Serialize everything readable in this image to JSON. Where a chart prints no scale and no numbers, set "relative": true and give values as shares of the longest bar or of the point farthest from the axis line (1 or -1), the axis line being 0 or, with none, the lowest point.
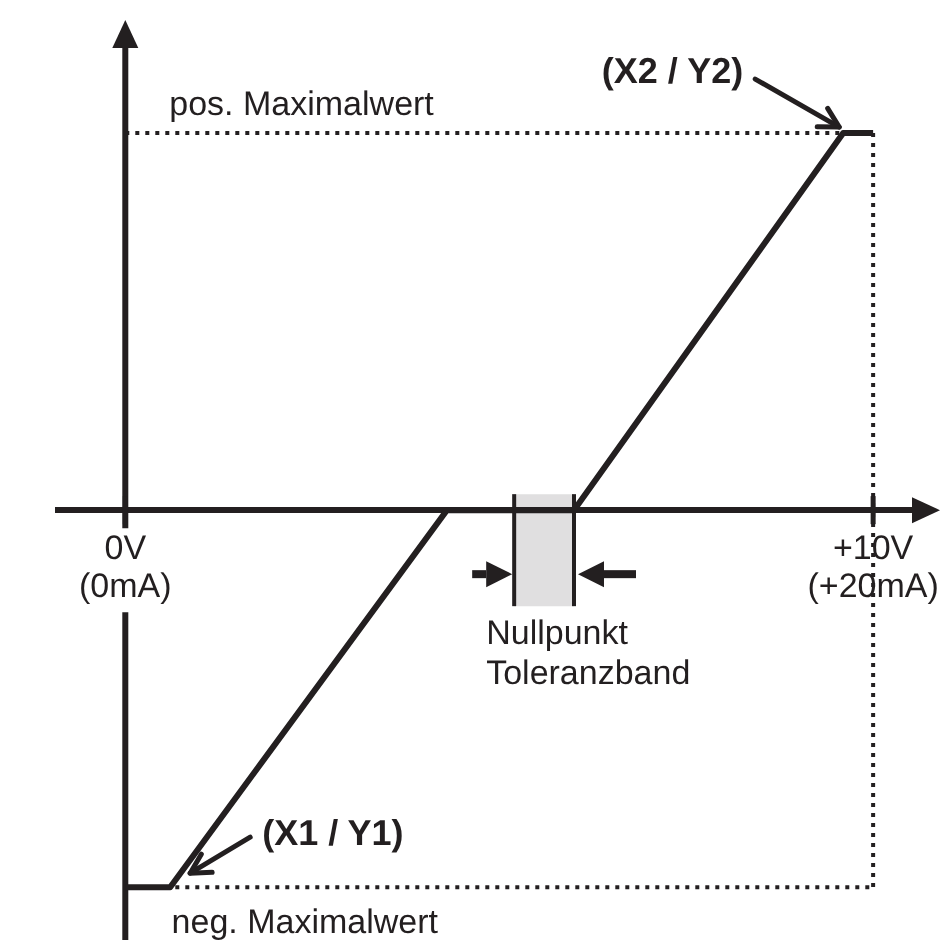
{
  "chart_data": {
    "type": "line",
    "relative": true,
    "xlim": [
      -0.9,
      10.6
    ],
    "xticks": [
      {
        "value": 0,
        "label": "0V"
      },
      {
        "value": 10,
        "label": "+10V"
      }
    ],
    "x2lim": [
      -1.8,
      21.2
    ],
    "x2ticks": [
      {
        "value": 0,
        "label": "(0mA)"
      },
      {
        "value": 20,
        "label": "(+20mA)"
      }
    ],
    "x": [
      0,
      0.6,
      4.3,
      6.0,
      9.6,
      10
    ],
    "series": [
      {
        "color": "#231f20",
        "values": [
          -1,
          -1,
          0,
          0,
          1,
          1
        ]
      }
    ],
    "line_style": "solid",
    "ref_lines": [
      {
        "axis": "y",
        "value": 1,
        "label": "pos. Maximalwert",
        "color": "#231f20",
        "line_style": "dotted"
      },
      {
        "axis": "y",
        "value": -1,
        "color": "#231f20",
        "line_style": "dotted"
      },
      {
        "axis": "x",
        "value": 10,
        "color": "#231f20",
        "line_style": "dotted"
      }
    ],
    "bands": [
      {
        "axis": "x",
        "from": 5.2,
        "to": 6.0,
        "color": "#231f20"
      }
    ],
    "annotations": [
      {
        "text": "(X1 / Y1)",
        "x": 0.6,
        "y": -1
      },
      {
        "text": "(X2 / Y2)",
        "x": 9.6,
        "y": 1
      },
      {
        "text": "neg. Maximalwert",
        "x": 2.4,
        "y": -1
      },
      "Nullpunkt\nToleranzband"
    ]
  }
}
